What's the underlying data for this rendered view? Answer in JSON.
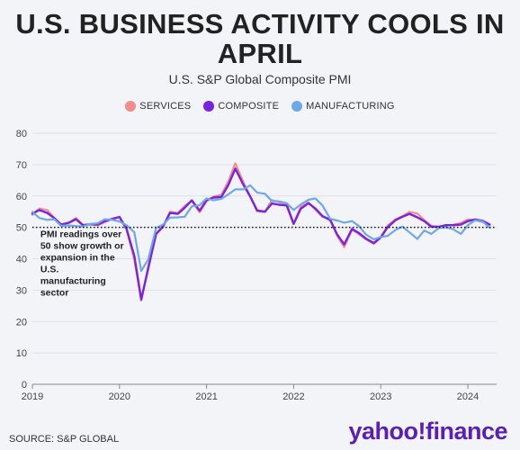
{
  "header": {
    "title": "U.S. BUSINESS ACTIVITY COOLS IN APRIL",
    "subtitle": "U.S. S&P Global Composite PMI"
  },
  "footer": {
    "source": "SOURCE: S&P GLOBAL",
    "brand": "yahoo!finance"
  },
  "chart_data": {
    "type": "line",
    "title": "U.S. BUSINESS ACTIVITY COOLS IN APRIL",
    "subtitle": "U.S. S&P Global Composite PMI",
    "xlabel": "",
    "ylabel": "",
    "ylim": [
      0,
      80
    ],
    "xlim": [
      2019.0,
      2024.33
    ],
    "y_ticks": [
      0,
      10,
      20,
      30,
      40,
      50,
      60,
      70,
      80
    ],
    "x_ticks": [
      "2019",
      "2020",
      "2021",
      "2022",
      "2023",
      "2024"
    ],
    "grid": "horizontal",
    "legend_position": "top-center",
    "reference_line": {
      "y": 50,
      "style": "dotted"
    },
    "annotation": {
      "text_lines": [
        "PMI readings over",
        "50 show growth or",
        "expansion in the",
        "U.S.",
        "manufacturing",
        "sector"
      ],
      "anchor_x": 2019.05,
      "anchor_y": 48
    },
    "x": [
      2019.0,
      2019.08,
      2019.17,
      2019.25,
      2019.33,
      2019.42,
      2019.5,
      2019.58,
      2019.67,
      2019.75,
      2019.83,
      2019.92,
      2020.0,
      2020.08,
      2020.17,
      2020.25,
      2020.33,
      2020.42,
      2020.5,
      2020.58,
      2020.67,
      2020.75,
      2020.83,
      2020.92,
      2021.0,
      2021.08,
      2021.17,
      2021.25,
      2021.33,
      2021.42,
      2021.5,
      2021.58,
      2021.67,
      2021.75,
      2021.83,
      2021.92,
      2022.0,
      2022.08,
      2022.17,
      2022.25,
      2022.33,
      2022.42,
      2022.5,
      2022.58,
      2022.67,
      2022.75,
      2022.83,
      2022.92,
      2023.0,
      2023.08,
      2023.17,
      2023.25,
      2023.33,
      2023.42,
      2023.5,
      2023.58,
      2023.67,
      2023.75,
      2023.83,
      2023.92,
      2024.0,
      2024.08,
      2024.17,
      2024.25
    ],
    "series": [
      {
        "name": "SERVICES",
        "color": "#f48c8c",
        "values": [
          54.0,
          56.0,
          55.5,
          53.0,
          50.9,
          51.5,
          53.0,
          50.7,
          50.9,
          50.6,
          51.6,
          52.8,
          53.4,
          49.4,
          39.8,
          26.7,
          37.5,
          47.9,
          50.0,
          55.0,
          54.6,
          56.9,
          58.4,
          54.8,
          58.3,
          59.8,
          60.4,
          64.7,
          70.4,
          64.6,
          59.9,
          55.1,
          54.9,
          58.7,
          58.0,
          57.6,
          51.2,
          56.5,
          58.0,
          55.6,
          53.4,
          52.7,
          47.3,
          43.7,
          49.3,
          47.8,
          46.2,
          44.7,
          46.8,
          50.6,
          52.6,
          53.6,
          54.9,
          54.4,
          52.3,
          50.5,
          50.1,
          50.6,
          50.8,
          51.4,
          52.5,
          52.3,
          51.7,
          50.9
        ]
      },
      {
        "name": "COMPOSITE",
        "color": "#7a22e0",
        "values": [
          54.4,
          55.5,
          54.6,
          53.0,
          50.9,
          51.5,
          52.6,
          50.7,
          51.0,
          50.9,
          52.0,
          52.7,
          53.3,
          49.6,
          40.9,
          27.0,
          37.0,
          47.9,
          50.3,
          54.6,
          54.3,
          56.3,
          58.6,
          55.3,
          58.7,
          59.5,
          59.7,
          63.5,
          68.7,
          63.7,
          59.9,
          55.4,
          55.0,
          57.6,
          57.2,
          57.0,
          51.1,
          55.9,
          57.7,
          56.0,
          53.6,
          52.3,
          47.7,
          44.6,
          49.5,
          48.2,
          46.4,
          45.0,
          46.8,
          50.1,
          52.3,
          53.4,
          54.3,
          53.2,
          52.0,
          50.2,
          50.2,
          50.7,
          50.7,
          50.9,
          52.0,
          52.5,
          52.1,
          50.9
        ]
      },
      {
        "name": "MANUFACTURING",
        "color": "#6fa8e8",
        "values": [
          54.9,
          53.0,
          52.4,
          52.6,
          50.5,
          50.6,
          50.4,
          50.3,
          51.1,
          51.3,
          52.6,
          52.4,
          51.9,
          50.7,
          48.5,
          36.1,
          39.8,
          49.8,
          50.9,
          53.1,
          53.2,
          53.4,
          56.7,
          57.1,
          59.2,
          58.6,
          59.1,
          60.5,
          62.1,
          62.1,
          63.4,
          61.1,
          60.7,
          58.4,
          58.3,
          57.7,
          55.5,
          57.3,
          58.8,
          59.2,
          57.0,
          52.7,
          52.2,
          51.5,
          52.0,
          50.4,
          47.7,
          46.2,
          46.9,
          47.3,
          49.2,
          50.2,
          48.4,
          46.3,
          49.0,
          47.9,
          49.8,
          50.0,
          49.4,
          47.9,
          50.7,
          52.2,
          51.9,
          49.9
        ]
      }
    ]
  }
}
